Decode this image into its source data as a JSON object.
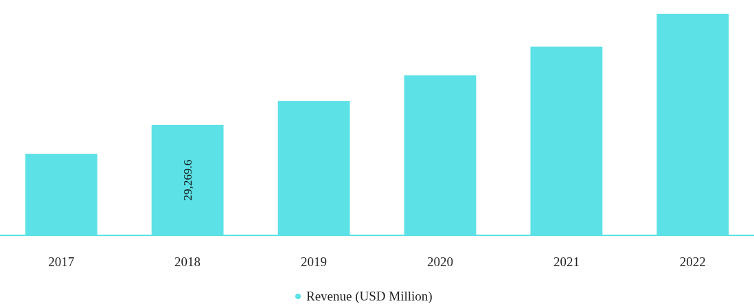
{
  "chart_data": {
    "type": "bar",
    "categories": [
      "2017",
      "2018",
      "2019",
      "2020",
      "2021",
      "2022"
    ],
    "series": [
      {
        "name": "Revenue (USD Million)",
        "color": "#5ce1e6",
        "values": [
          21600,
          29269.6,
          35600,
          42400,
          50000,
          58700
        ],
        "value_labels": [
          null,
          "29,269.6",
          null,
          null,
          null,
          null
        ]
      }
    ],
    "legend": "bottom"
  }
}
